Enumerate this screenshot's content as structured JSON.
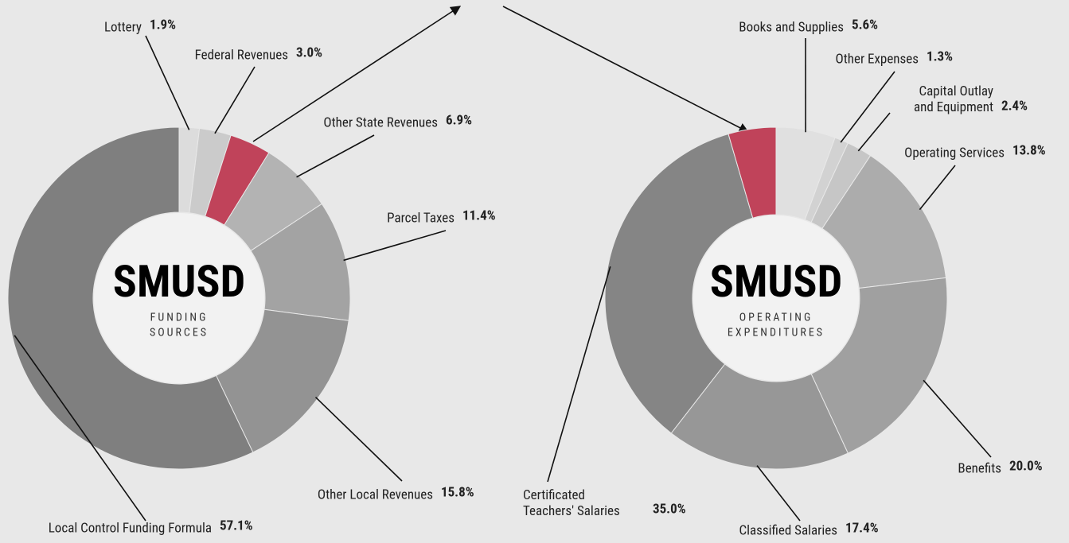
{
  "chart_data": [
    {
      "type": "donut",
      "center_title": "SMUSD",
      "center_subtitle": [
        "FUNDING",
        "SOURCES"
      ],
      "categories": [
        "Lottery",
        "Federal Revenues",
        null,
        "Other State Revenues",
        "Parcel Taxes",
        "Other Local Revenues",
        "Local Control Funding Formula"
      ],
      "values": [
        1.9,
        3.0,
        3.9,
        6.9,
        11.4,
        15.8,
        57.1
      ],
      "value_labels": [
        "1.9%",
        "3.0%",
        null,
        "6.9%",
        "11.4%",
        "15.8%",
        "57.1%"
      ],
      "colors": [
        "#dcdcdc",
        "#cbcbcb",
        "#c0435a",
        "#b3b3b3",
        "#a3a3a3",
        "#939393",
        "#7f7f7f"
      ]
    },
    {
      "type": "donut",
      "center_title": "SMUSD",
      "center_subtitle": [
        "OPERATING",
        "EXPENDITURES"
      ],
      "categories": [
        "Books and Supplies",
        "Other Expenses",
        "Capital Outlay and Equipment",
        "Operating Services",
        "Benefits",
        "Classified Salaries",
        "Certificated Teachers' Salaries",
        null
      ],
      "values": [
        5.6,
        1.3,
        2.4,
        13.8,
        20.0,
        17.4,
        35.0,
        4.5
      ],
      "value_labels": [
        "5.6%",
        "1.3%",
        "2.4%",
        "13.8%",
        "20.0%",
        "17.4%",
        "35.0%",
        null
      ],
      "colors": [
        "#e0e0e0",
        "#d2d2d2",
        "#c6c6c6",
        "#acacac",
        "#a0a0a0",
        "#979797",
        "#858585",
        "#c0435a"
      ]
    }
  ]
}
